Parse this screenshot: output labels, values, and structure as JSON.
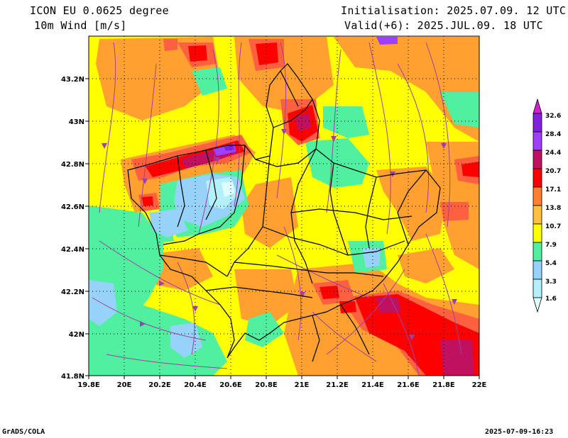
{
  "header": {
    "model": "ICON EU 0.0625 degree",
    "variable": "10m Wind [m/s]",
    "init": "Initialisation: 2025.07.09. 12 UTC",
    "valid": "Valid(+6): 2025.JUL.09. 18 UTC"
  },
  "footer": {
    "credit": "GrADS/COLA",
    "timestamp": "2025-07-09-16:23"
  },
  "map": {
    "lon_range": [
      19.8,
      22.0
    ],
    "lat_range": [
      41.8,
      43.4
    ],
    "x_ticks": [
      "19.8E",
      "20E",
      "20.2E",
      "20.4E",
      "20.6E",
      "20.8E",
      "21E",
      "21.2E",
      "21.4E",
      "21.6E",
      "21.8E",
      "22E"
    ],
    "y_ticks": [
      "43.2N",
      "43N",
      "42.8N",
      "42.6N",
      "42.4N",
      "42.2N",
      "42N",
      "41.8N"
    ],
    "grid": "dotted",
    "contour_colors": {
      "low": "#e0ffff",
      "c1": "#b4f0fa",
      "c2": "#96d2fa",
      "c3": "#50f0a0",
      "c4": "#ffff00",
      "c5": "#ffa030",
      "c6": "#ff6040",
      "c7": "#ff0000",
      "c8": "#c01060",
      "c9": "#a040ff",
      "c10": "#8020e0",
      "top": "#d020d0"
    },
    "streamline_color": "#a040a0"
  },
  "legend": {
    "levels": [
      "1.6",
      "3.3",
      "5.4",
      "7.9",
      "10.7",
      "13.8",
      "17.1",
      "20.7",
      "24.4",
      "28.4",
      "32.6"
    ],
    "colors": [
      "#e0ffff",
      "#b4f0fa",
      "#96d2fa",
      "#50f0a0",
      "#ffff00",
      "#ffc040",
      "#ff8030",
      "#ff0000",
      "#c01060",
      "#a040ff",
      "#8020e0",
      "#d020d0"
    ]
  }
}
